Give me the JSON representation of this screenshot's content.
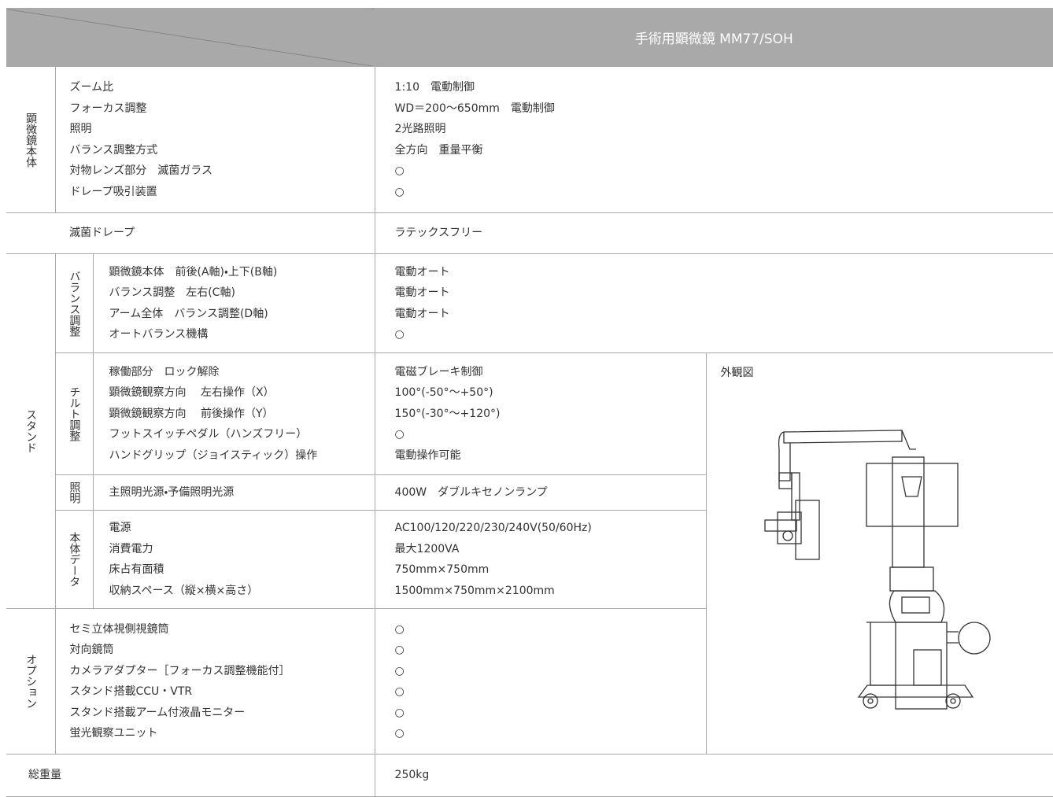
{
  "header": {
    "title": "手術用顕微鏡 MM77/SOH"
  },
  "microscope": {
    "label": "顕微鏡本体",
    "items": [
      "ズーム比",
      "フォーカス調整",
      "照明",
      "バランス調整方式",
      "対物レンズ部分　滅菌ガラス",
      "ドレープ吸引装置"
    ],
    "values": [
      "1:10　電動制御",
      "WD＝200～650mm　電動制御",
      "2光路照明",
      "全方向　重量平衡",
      "○",
      "○"
    ]
  },
  "drape": {
    "item": "滅菌ドレープ",
    "value": "ラテックスフリー"
  },
  "stand": {
    "label": "スタンド",
    "groups": [
      {
        "label": "バランス調整",
        "items": [
          "顕微鏡本体　前後(A軸)・上下(B軸)",
          "バランス調整　左右(C軸)",
          "アーム全体　バランス調整(D軸)",
          "オートバランス機構"
        ],
        "values": [
          "電動オート",
          "電動オート",
          "電動オート",
          "○"
        ]
      },
      {
        "label": "チルト調整",
        "items": [
          "稼働部分　ロック解除",
          "顕微鏡観察方向　 左右操作（X）",
          "顕微鏡観察方向　 前後操作（Y）",
          "フットスイッチペダル（ハンズフリー）",
          "ハンドグリップ（ジョイスティック）操作"
        ],
        "values": [
          "電磁ブレーキ制御",
          "100°(-50°～+50°)",
          "150°(-30°～+120°)",
          "○",
          "電動操作可能"
        ]
      },
      {
        "label": "照明",
        "items": [
          "主照明光源・予備照明光源"
        ],
        "values": [
          "400W　ダブルキセノンランプ"
        ]
      },
      {
        "label": "本体データ",
        "items": [
          "電源",
          "消費電力",
          "床占有面積",
          "収納スペース（縦×横×高さ）"
        ],
        "values": [
          "AC100/120/220/230/240V(50/60Hz)",
          "最大1200VA",
          "750mm×750mm",
          "1500mm×750mm×2100mm"
        ]
      }
    ]
  },
  "options": {
    "label": "オプション",
    "items": [
      "セミ立体視側視鏡筒",
      "対向鏡筒",
      "カメラアダプター［フォーカス調整機能付］",
      "スタンド搭載CCU・VTR",
      "スタンド搭載アーム付液晶モニター",
      "蛍光観察ユニット"
    ],
    "values": [
      "○",
      "○",
      "○",
      "○",
      "○",
      "○"
    ]
  },
  "total": {
    "label": "総重量",
    "value": "250kg"
  },
  "figure": {
    "label": "外観図"
  }
}
